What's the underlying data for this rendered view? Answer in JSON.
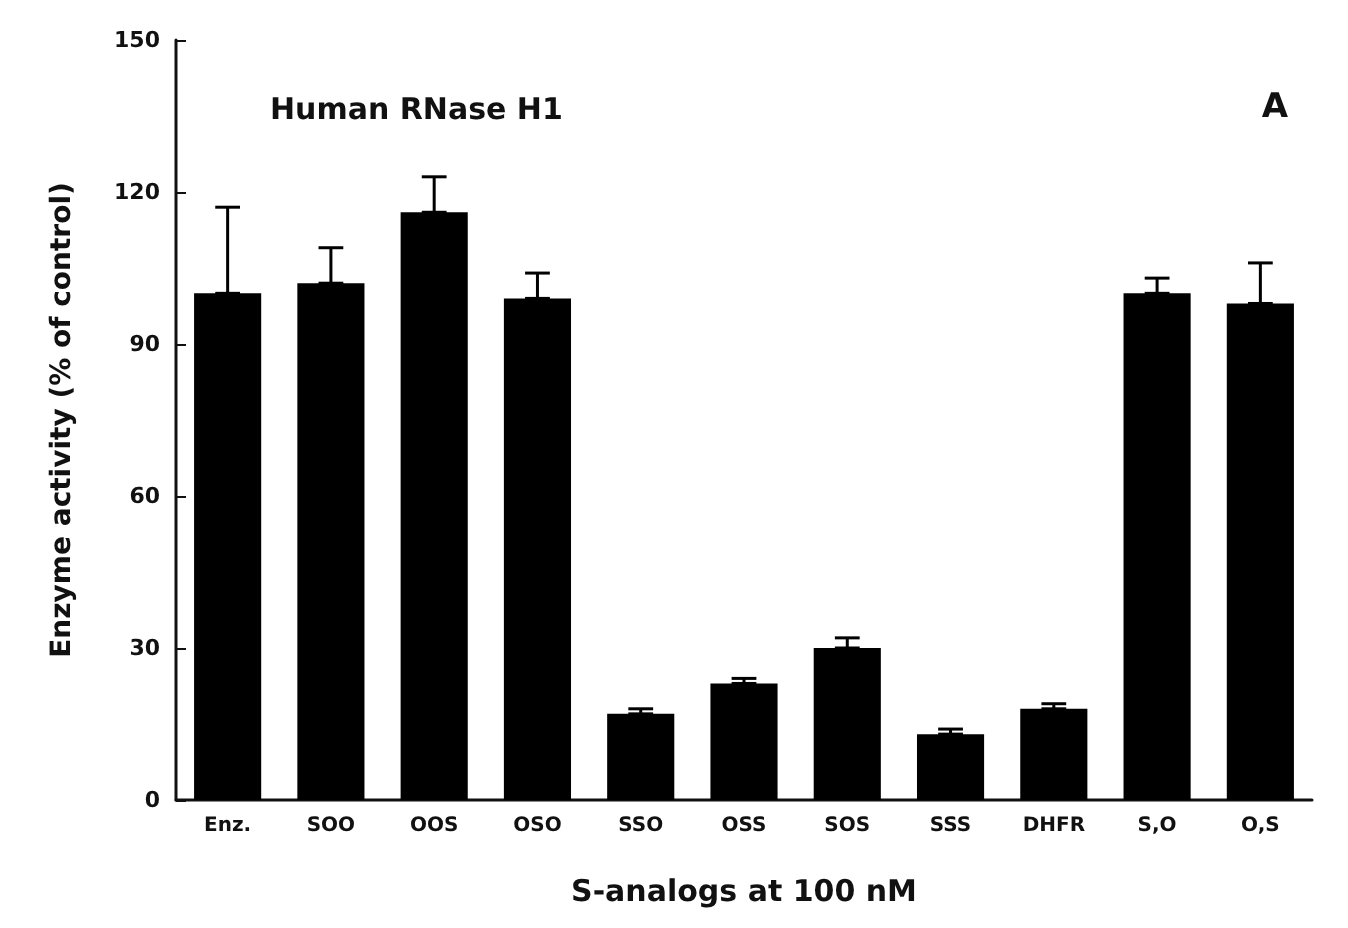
{
  "chart_data": {
    "type": "bar",
    "title": "Human RNase H1",
    "xlabel": "S-analogs at 100 nM",
    "ylabel": "Enzyme activity (% of control)",
    "annotations": [
      "A"
    ],
    "categories": [
      "Enz.",
      "SOO",
      "OOS",
      "OSO",
      "SSO",
      "OSS",
      "SOS",
      "SSS",
      "DHFR",
      "S,O",
      "O,S"
    ],
    "values": [
      100,
      102,
      116,
      99,
      17,
      23,
      30,
      13,
      18,
      100,
      98
    ],
    "errors": [
      [
        100,
        117
      ],
      [
        102,
        109
      ],
      [
        116,
        123
      ],
      [
        99,
        104
      ],
      [
        17,
        18
      ],
      [
        23,
        24
      ],
      [
        30,
        32
      ],
      [
        13,
        14
      ],
      [
        18,
        19
      ],
      [
        100,
        103
      ],
      [
        98,
        106
      ]
    ],
    "color": "#000000",
    "ylim": [
      0,
      150
    ],
    "yticks": [
      0,
      30,
      60,
      90,
      120,
      150
    ],
    "grid": false
  }
}
